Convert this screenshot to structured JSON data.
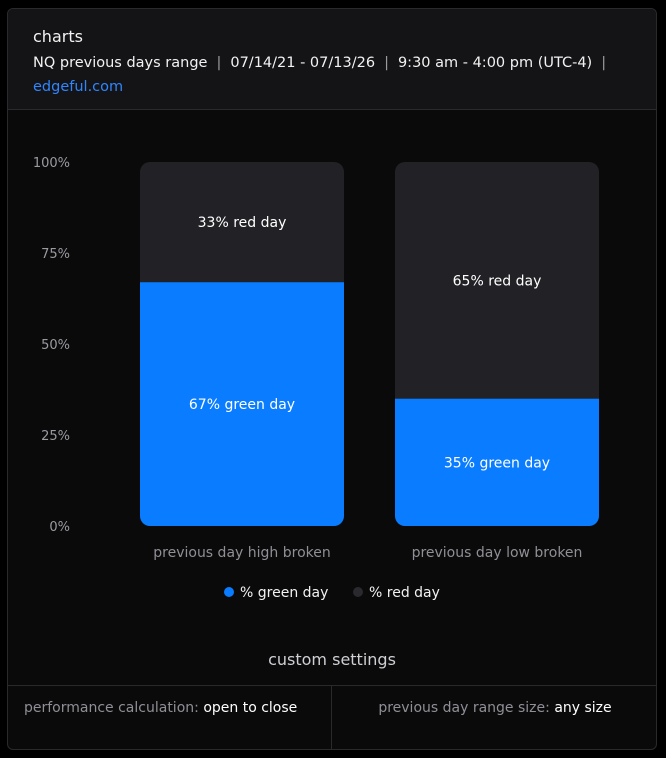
{
  "header": {
    "title": "charts",
    "subtitle_parts": [
      "NQ previous days range",
      "07/14/21 - 07/13/26",
      "9:30 am - 4:00 pm (UTC-4)"
    ],
    "separator": "|",
    "link": "edgeful.com"
  },
  "chart_data": {
    "type": "bar",
    "stacked": true,
    "categories": [
      "previous day high broken",
      "previous day low broken"
    ],
    "series": [
      {
        "name": "% green day",
        "values": [
          67,
          35
        ],
        "color": "#0a7cff"
      },
      {
        "name": "% red day",
        "values": [
          33,
          65
        ],
        "color": "#222226"
      }
    ],
    "data_labels": [
      [
        "67% green day",
        "35% green day"
      ],
      [
        "33% red day",
        "65% red day"
      ]
    ],
    "yticks": [
      "100%",
      "75%",
      "50%",
      "25%",
      "0%"
    ],
    "ylim": [
      0,
      100
    ],
    "legend": "bottom-center"
  },
  "custom_settings": {
    "title": "custom settings",
    "items": [
      {
        "label": "performance calculation:",
        "value": "open to close"
      },
      {
        "label": "previous day range size:",
        "value": "any size"
      }
    ]
  }
}
